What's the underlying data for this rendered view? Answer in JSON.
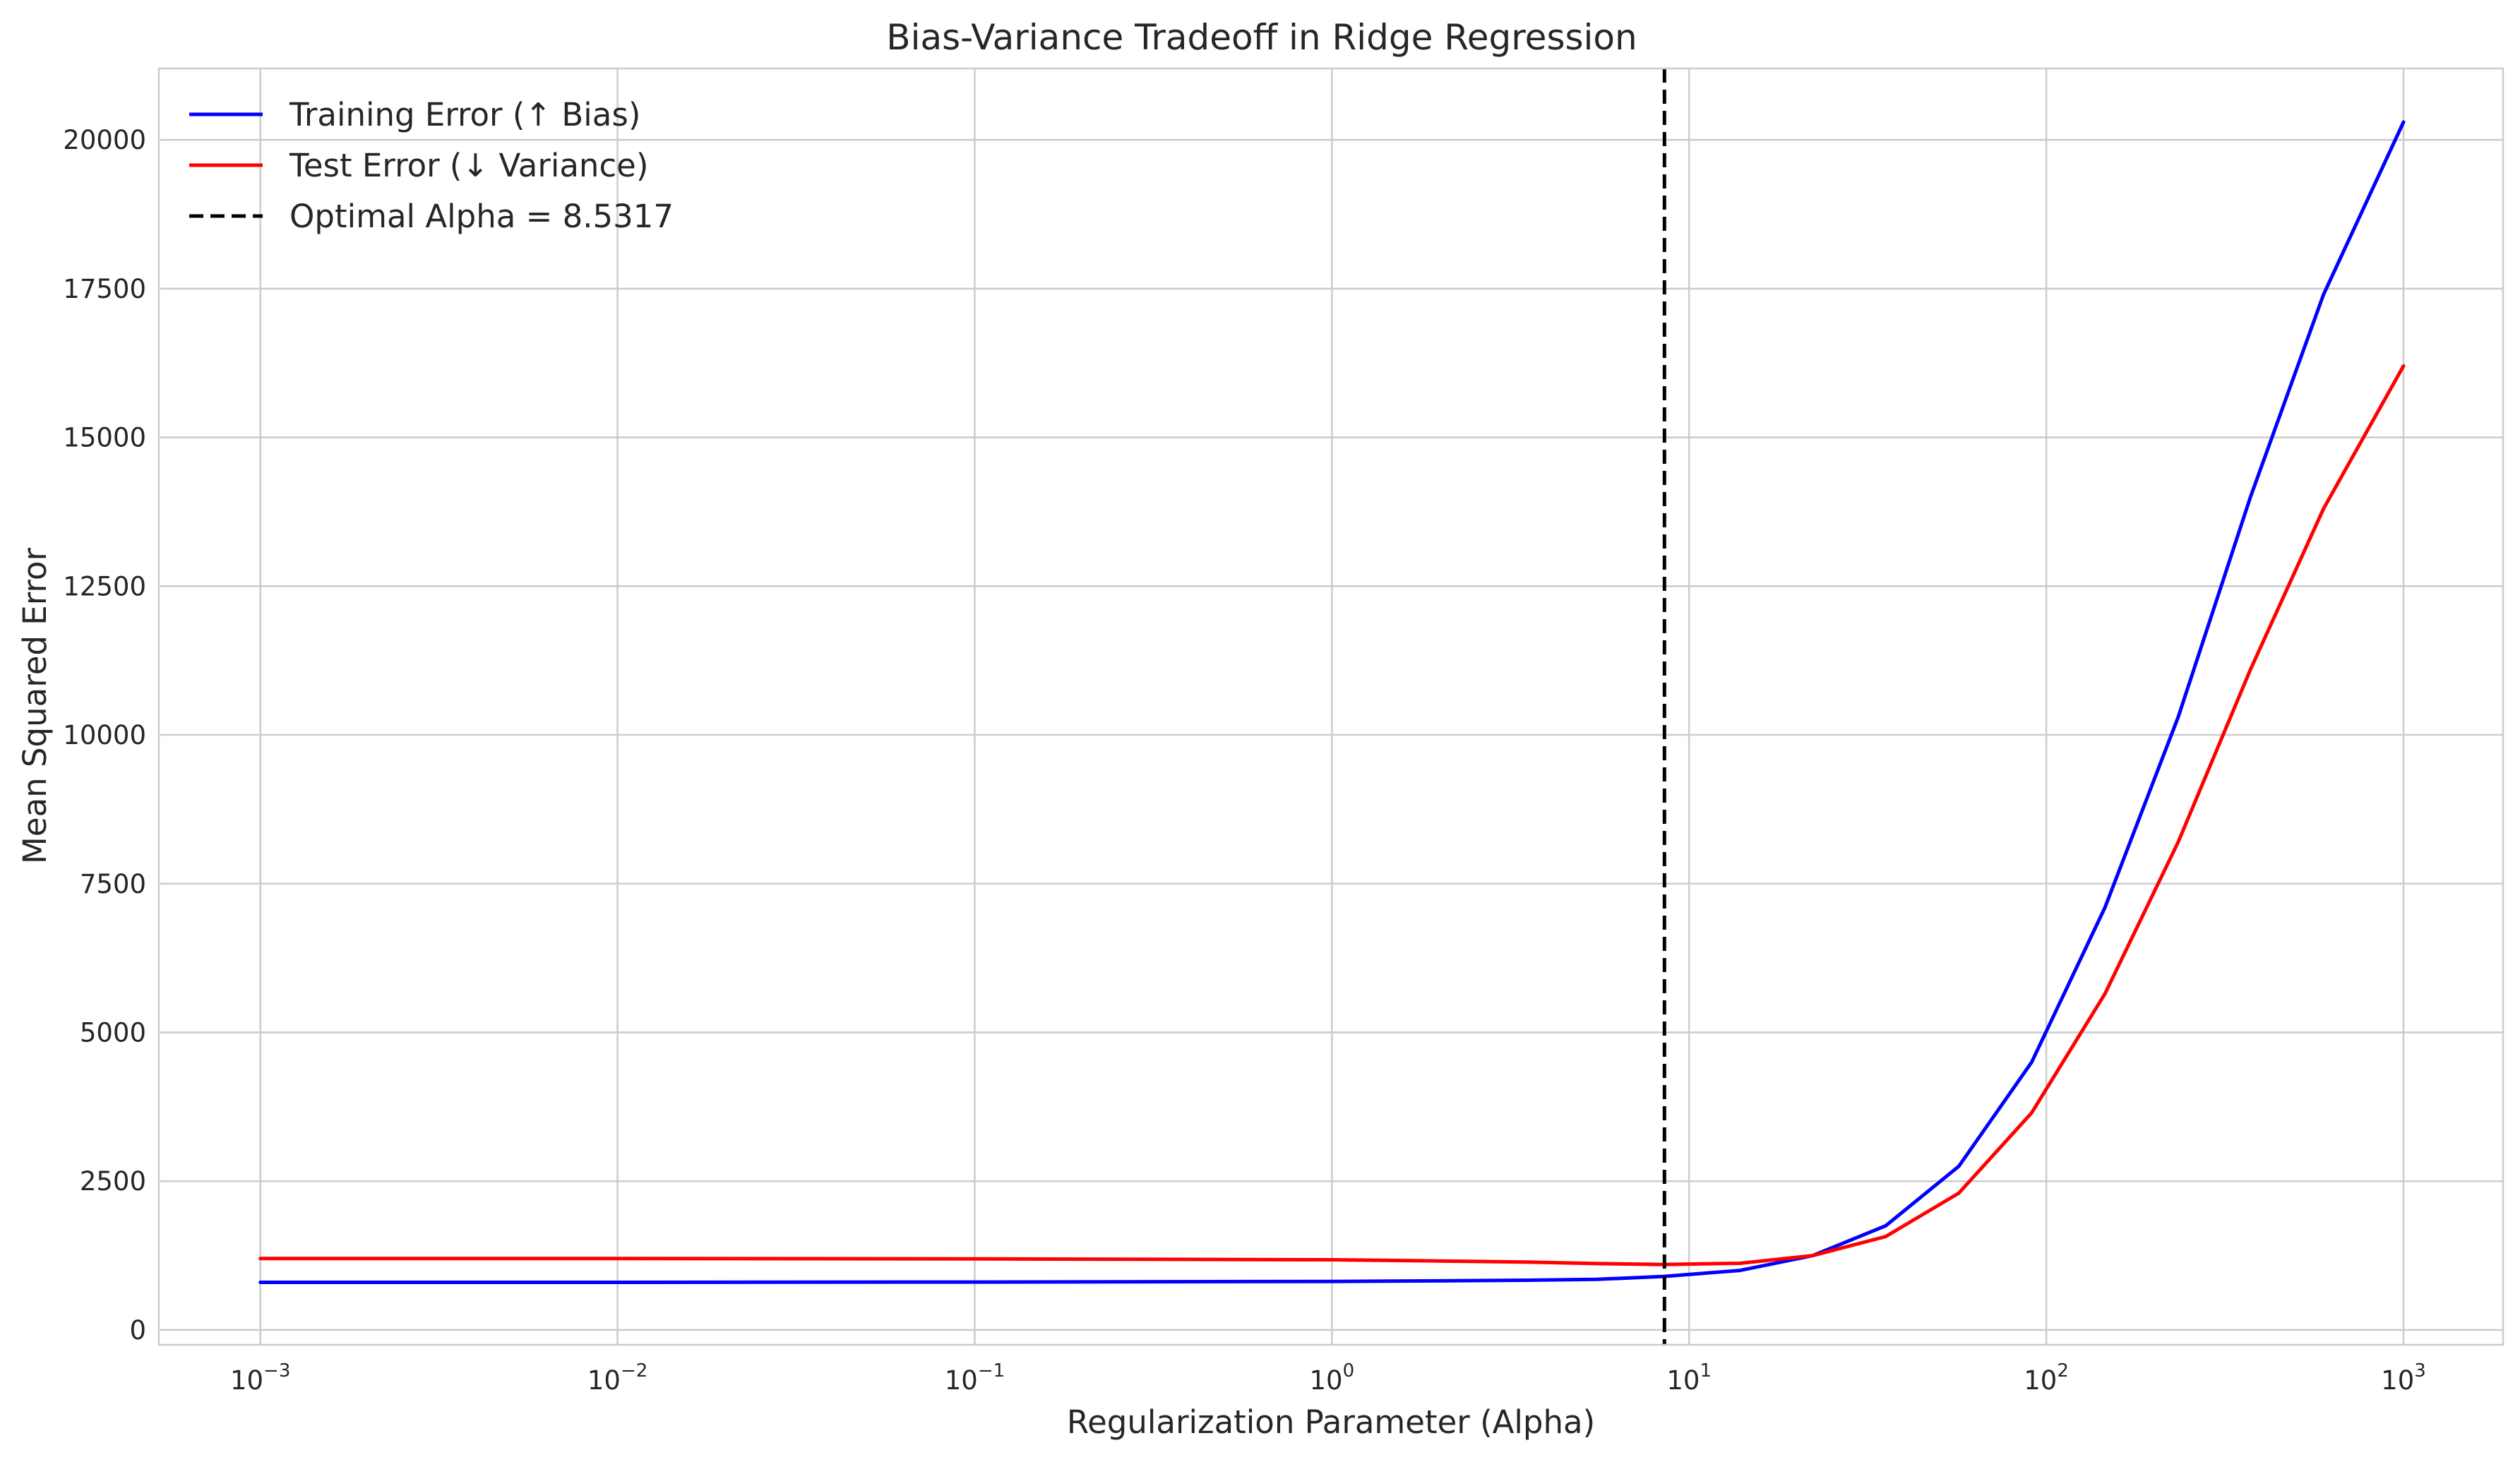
{
  "chart_data": {
    "type": "line",
    "title": "Bias-Variance Tradeoff in Ridge Regression",
    "xlabel": "Regularization Parameter (Alpha)",
    "ylabel": "Mean Squared Error",
    "xscale": "log",
    "xlim": [
      0.00052,
      1900
    ],
    "ylim": [
      -250,
      21200
    ],
    "x_ticks": [
      {
        "value": 0.001,
        "base": "10",
        "exp": "−3"
      },
      {
        "value": 0.01,
        "base": "10",
        "exp": "−2"
      },
      {
        "value": 0.1,
        "base": "10",
        "exp": "−1"
      },
      {
        "value": 1,
        "base": "10",
        "exp": "0"
      },
      {
        "value": 10,
        "base": "10",
        "exp": "1"
      },
      {
        "value": 100,
        "base": "10",
        "exp": "2"
      },
      {
        "value": 1000,
        "base": "10",
        "exp": "3"
      }
    ],
    "y_ticks": [
      0,
      2500,
      5000,
      7500,
      10000,
      12500,
      15000,
      17500,
      20000
    ],
    "grid": true,
    "legend_position": "top-left",
    "series": [
      {
        "name": "Training Error (↑ Bias)",
        "color": "#0000ff",
        "style": "solid",
        "x": [
          0.001,
          0.01,
          0.1,
          1,
          2,
          3.5,
          5.5,
          8.5,
          13.9,
          22.2,
          35.5,
          56.9,
          91,
          146,
          234,
          373,
          597,
          1000
        ],
        "y": [
          800,
          800,
          805,
          815,
          825,
          835,
          850,
          900,
          1000,
          1250,
          1750,
          2750,
          4500,
          7100,
          10300,
          14000,
          17400,
          20300
        ]
      },
      {
        "name": "Test Error (↓ Variance)",
        "color": "#ff0000",
        "style": "solid",
        "x": [
          0.001,
          0.01,
          0.1,
          1,
          2,
          3.5,
          5.5,
          8.5,
          13.9,
          22.2,
          35.5,
          56.9,
          91,
          146,
          234,
          373,
          597,
          1000
        ],
        "y": [
          1200,
          1200,
          1195,
          1180,
          1160,
          1140,
          1115,
          1100,
          1120,
          1250,
          1570,
          2300,
          3650,
          5650,
          8200,
          11100,
          13800,
          16200
        ]
      }
    ],
    "vline": {
      "name": "Optimal Alpha = 8.5317",
      "x": 8.5317,
      "color": "#000000",
      "style": "dashed"
    }
  }
}
